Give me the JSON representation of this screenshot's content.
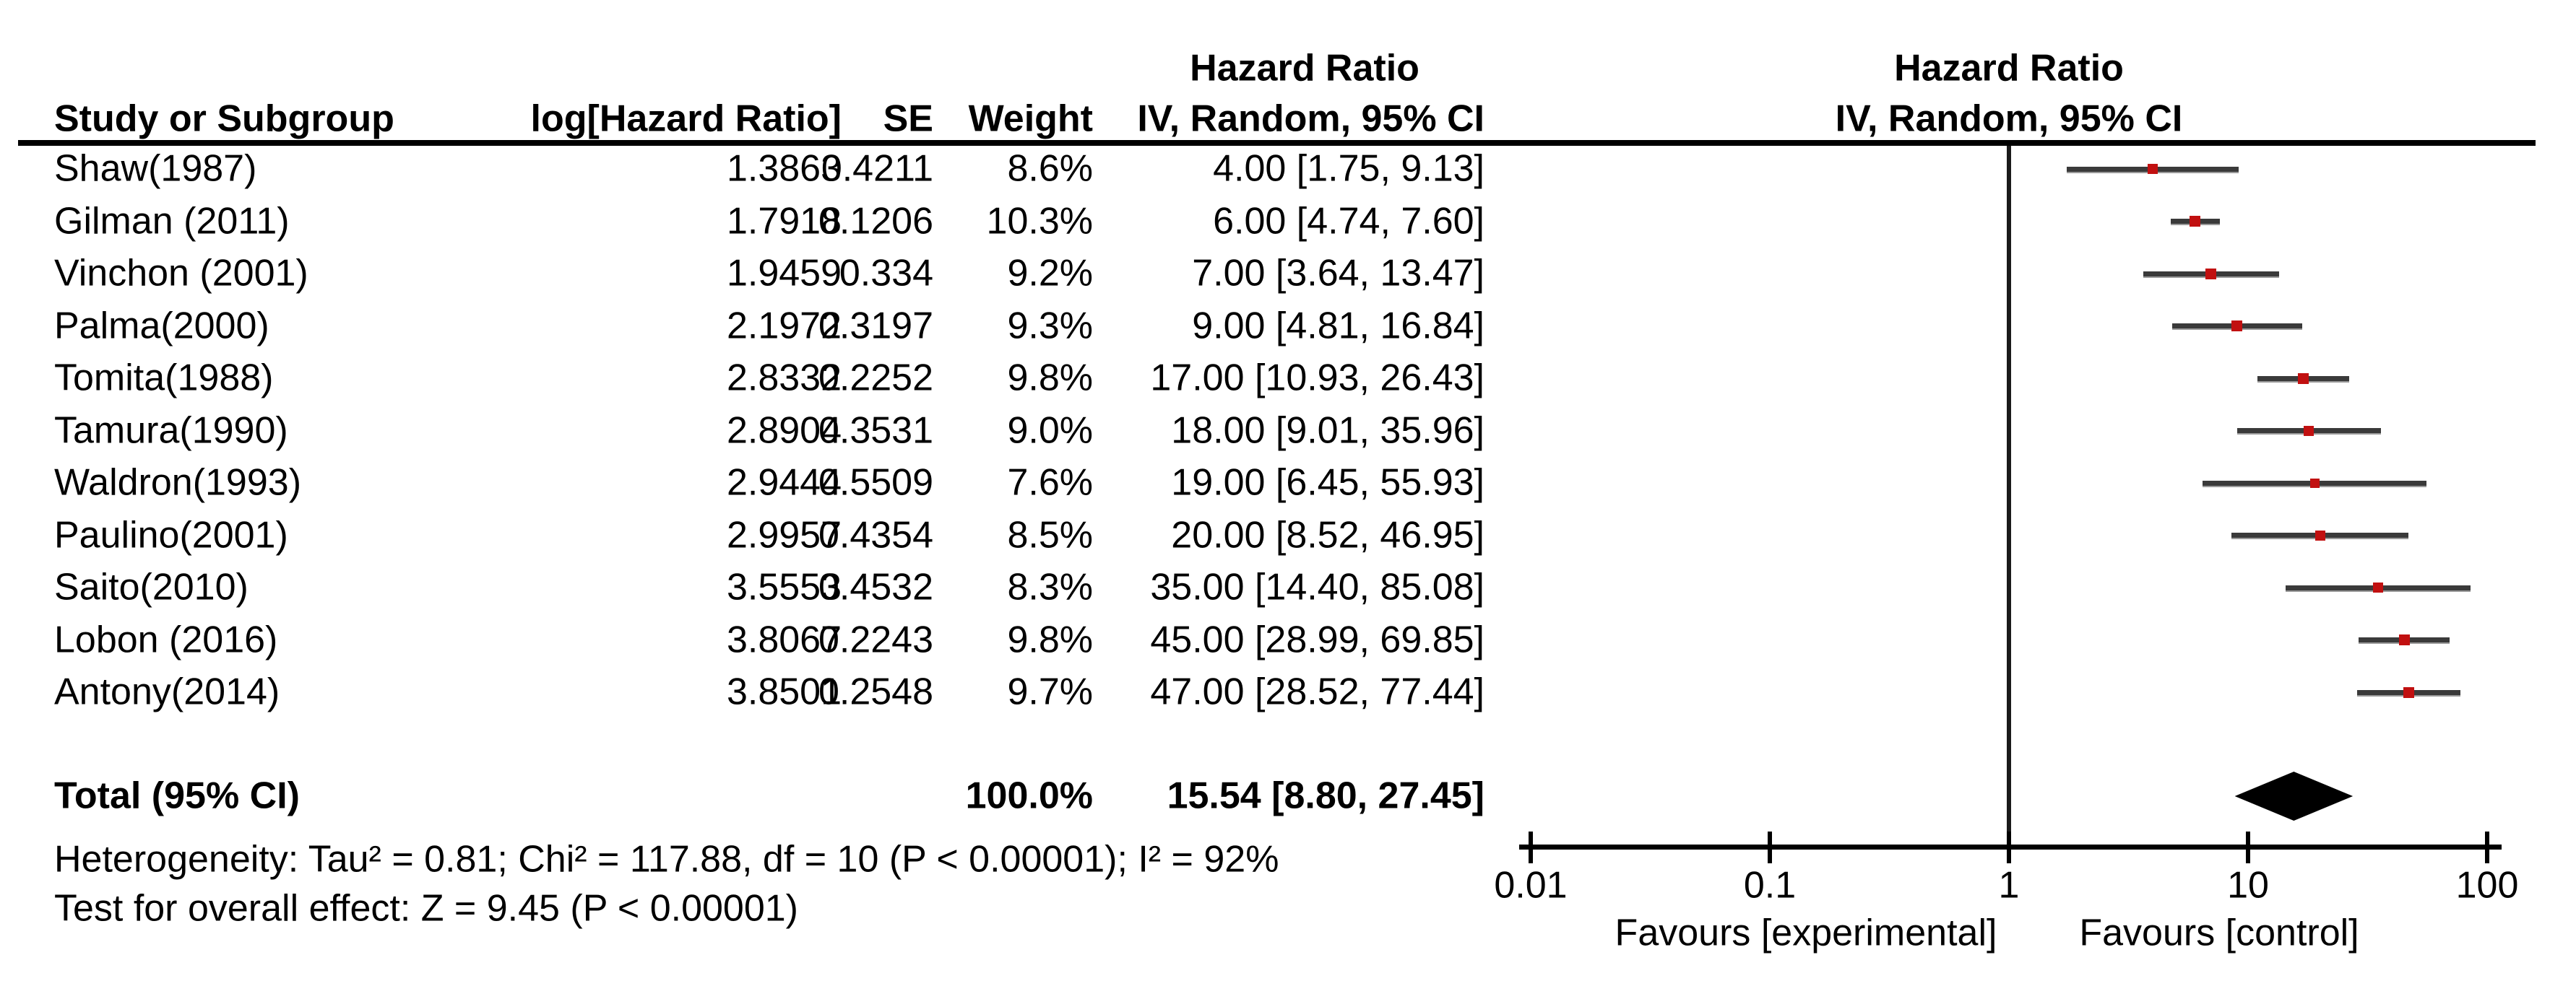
{
  "table_headers": {
    "study": "Study or Subgroup",
    "log_hr": "log[Hazard Ratio]",
    "se": "SE",
    "weight": "Weight",
    "effect_col_line1": "Hazard Ratio",
    "effect_col_line2": "IV, Random, 95% CI",
    "plot_col_line1": "Hazard Ratio",
    "plot_col_line2": "IV, Random, 95% CI"
  },
  "chart_data": {
    "type": "forest",
    "effect_measure": "Hazard Ratio",
    "model": "IV, Random, 95% CI",
    "x_axis": {
      "scale": "log10",
      "min": 0.01,
      "max": 100,
      "ticks": [
        "0.01",
        "0.1",
        "1",
        "10",
        "100"
      ],
      "tick_values": [
        0.01,
        0.1,
        1,
        10,
        100
      ]
    },
    "studies": [
      {
        "name": "Shaw(1987)",
        "log_hr": "1.3863",
        "se": "0.4211",
        "weight": "8.6%",
        "weight_value": 8.6,
        "ci_label": "4.00 [1.75, 9.13]",
        "hr": 4.0,
        "ci_low": 1.75,
        "ci_high": 9.13
      },
      {
        "name": "Gilman (2011)",
        "log_hr": "1.7918",
        "se": "0.1206",
        "weight": "10.3%",
        "weight_value": 10.3,
        "ci_label": "6.00 [4.74, 7.60]",
        "hr": 6.0,
        "ci_low": 4.74,
        "ci_high": 7.6
      },
      {
        "name": "Vinchon (2001)",
        "log_hr": "1.9459",
        "se": "0.334",
        "weight": "9.2%",
        "weight_value": 9.2,
        "ci_label": "7.00 [3.64, 13.47]",
        "hr": 7.0,
        "ci_low": 3.64,
        "ci_high": 13.47
      },
      {
        "name": "Palma(2000)",
        "log_hr": "2.1972",
        "se": "0.3197",
        "weight": "9.3%",
        "weight_value": 9.3,
        "ci_label": "9.00 [4.81, 16.84]",
        "hr": 9.0,
        "ci_low": 4.81,
        "ci_high": 16.84
      },
      {
        "name": "Tomita(1988)",
        "log_hr": "2.8332",
        "se": "0.2252",
        "weight": "9.8%",
        "weight_value": 9.8,
        "ci_label": "17.00 [10.93, 26.43]",
        "hr": 17.0,
        "ci_low": 10.93,
        "ci_high": 26.43
      },
      {
        "name": "Tamura(1990)",
        "log_hr": "2.8904",
        "se": "0.3531",
        "weight": "9.0%",
        "weight_value": 9.0,
        "ci_label": "18.00 [9.01, 35.96]",
        "hr": 18.0,
        "ci_low": 9.01,
        "ci_high": 35.96
      },
      {
        "name": "Waldron(1993)",
        "log_hr": "2.9444",
        "se": "0.5509",
        "weight": "7.6%",
        "weight_value": 7.6,
        "ci_label": "19.00 [6.45, 55.93]",
        "hr": 19.0,
        "ci_low": 6.45,
        "ci_high": 55.93
      },
      {
        "name": "Paulino(2001)",
        "log_hr": "2.9957",
        "se": "0.4354",
        "weight": "8.5%",
        "weight_value": 8.5,
        "ci_label": "20.00 [8.52, 46.95]",
        "hr": 20.0,
        "ci_low": 8.52,
        "ci_high": 46.95
      },
      {
        "name": "Saito(2010)",
        "log_hr": "3.5553",
        "se": "0.4532",
        "weight": "8.3%",
        "weight_value": 8.3,
        "ci_label": "35.00 [14.40, 85.08]",
        "hr": 35.0,
        "ci_low": 14.4,
        "ci_high": 85.08
      },
      {
        "name": "Lobon (2016)",
        "log_hr": "3.8067",
        "se": "0.2243",
        "weight": "9.8%",
        "weight_value": 9.8,
        "ci_label": "45.00 [28.99, 69.85]",
        "hr": 45.0,
        "ci_low": 28.99,
        "ci_high": 69.85
      },
      {
        "name": "Antony(2014)",
        "log_hr": "3.8501",
        "se": "0.2548",
        "weight": "9.7%",
        "weight_value": 9.7,
        "ci_label": "47.00 [28.52, 77.44]",
        "hr": 47.0,
        "ci_low": 28.52,
        "ci_high": 77.44
      }
    ],
    "total": {
      "label": "Total (95% CI)",
      "weight": "100.0%",
      "ci_label": "15.54 [8.80, 27.45]",
      "hr": 15.54,
      "ci_low": 8.8,
      "ci_high": 27.45
    },
    "footer": {
      "heterogeneity": "Heterogeneity: Tau² = 0.81; Chi² = 117.88, df = 10 (P < 0.00001); I² = 92%",
      "overall_effect": "Test for overall effect: Z = 9.45 (P < 0.00001)",
      "favours_left": "Favours [experimental]",
      "favours_right": "Favours [control]"
    },
    "colors": {
      "marker": "#c11010",
      "ci_line": "#3a3a3a",
      "diamond": "#000000",
      "axis": "#000000",
      "text": "#000000"
    }
  }
}
